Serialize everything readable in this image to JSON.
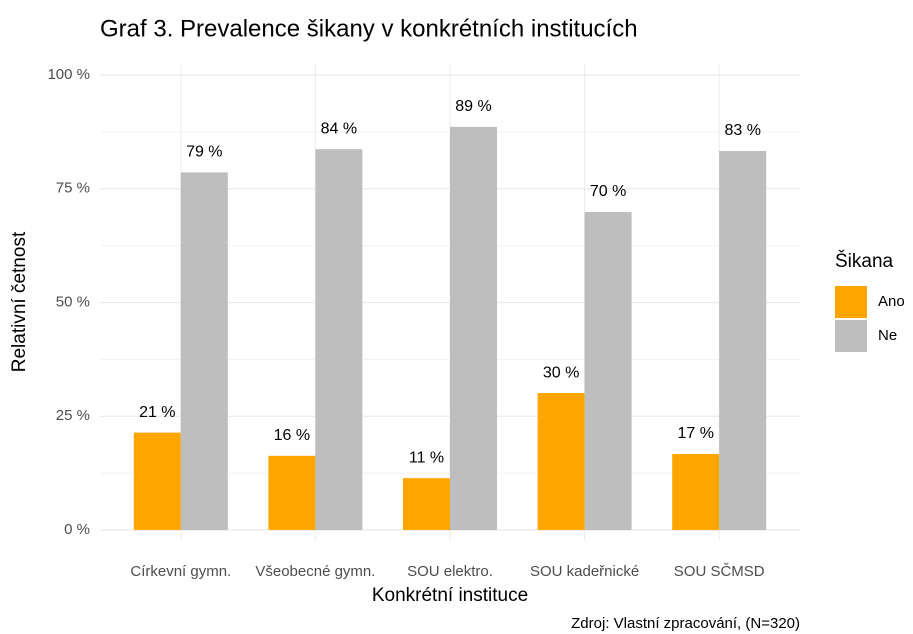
{
  "chart_data": {
    "type": "bar",
    "title": "Graf 3. Prevalence šikany v konkrétních institucích",
    "x_label": "Konkrétní instituce",
    "y_label": "Relativní četnost",
    "source": "Zdroj: Vlastní zpracování, (N=320)",
    "legend_title": "Šikana",
    "categories": [
      "Církevní gymn.",
      "Všeobecné gymn.",
      "SOU elektro.",
      "SOU kadeřnické",
      "SOU SČMSD"
    ],
    "series": [
      {
        "name": "Ano",
        "color": "#ffa500",
        "values": [
          21.4,
          16.3,
          11.4,
          30.1,
          16.7
        ],
        "value_labels": [
          "21 %",
          "16 %",
          "11 %",
          "30 %",
          "17 %"
        ]
      },
      {
        "name": "Ne",
        "color": "#bebebe",
        "values": [
          78.6,
          83.7,
          88.6,
          69.9,
          83.3
        ],
        "value_labels": [
          "79 %",
          "84 %",
          "89 %",
          "70 %",
          "83 %"
        ]
      }
    ],
    "ylim": [
      0,
      100
    ],
    "yticks": [
      {
        "value": 0,
        "label": "0 %"
      },
      {
        "value": 25,
        "label": "25 %"
      },
      {
        "value": 50,
        "label": "50 %"
      },
      {
        "value": 75,
        "label": "75 %"
      },
      {
        "value": 100,
        "label": "100 %"
      }
    ],
    "grid": true,
    "legend": "right"
  }
}
